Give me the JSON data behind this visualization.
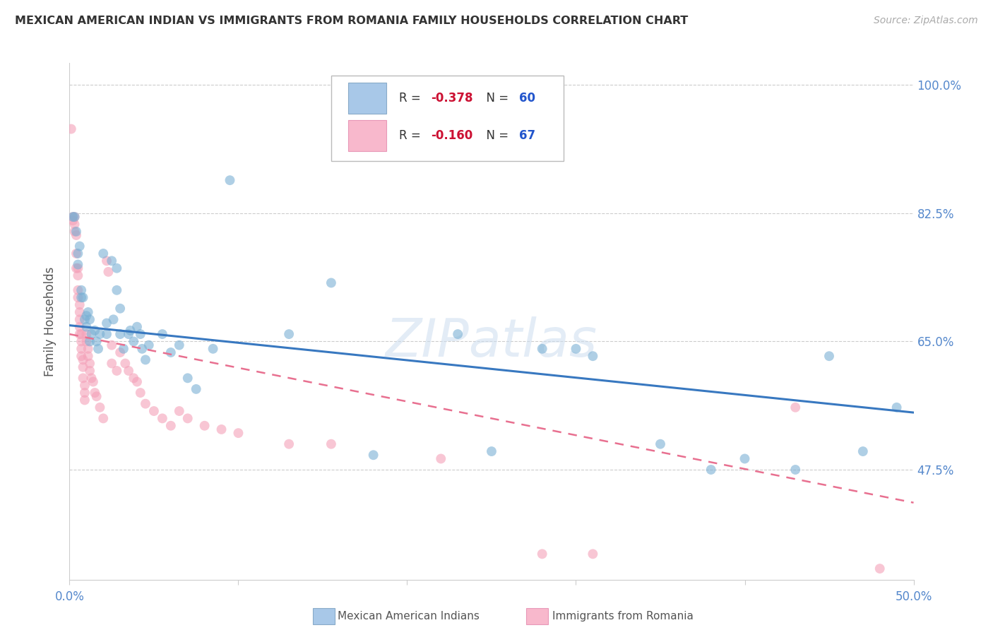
{
  "title": "MEXICAN AMERICAN INDIAN VS IMMIGRANTS FROM ROMANIA FAMILY HOUSEHOLDS CORRELATION CHART",
  "source": "Source: ZipAtlas.com",
  "ylabel": "Family Households",
  "xlim": [
    0.0,
    0.5
  ],
  "ylim": [
    0.325,
    1.03
  ],
  "yticks": [
    0.475,
    0.65,
    0.825,
    1.0
  ],
  "yticklabels": [
    "47.5%",
    "65.0%",
    "82.5%",
    "100.0%"
  ],
  "blue_scatter": [
    [
      0.002,
      0.82
    ],
    [
      0.003,
      0.82
    ],
    [
      0.004,
      0.8
    ],
    [
      0.005,
      0.755
    ],
    [
      0.005,
      0.77
    ],
    [
      0.006,
      0.78
    ],
    [
      0.007,
      0.71
    ],
    [
      0.007,
      0.72
    ],
    [
      0.008,
      0.71
    ],
    [
      0.009,
      0.68
    ],
    [
      0.01,
      0.67
    ],
    [
      0.01,
      0.685
    ],
    [
      0.011,
      0.69
    ],
    [
      0.012,
      0.68
    ],
    [
      0.012,
      0.65
    ],
    [
      0.013,
      0.66
    ],
    [
      0.015,
      0.665
    ],
    [
      0.016,
      0.65
    ],
    [
      0.017,
      0.64
    ],
    [
      0.018,
      0.66
    ],
    [
      0.02,
      0.77
    ],
    [
      0.022,
      0.675
    ],
    [
      0.022,
      0.66
    ],
    [
      0.025,
      0.76
    ],
    [
      0.026,
      0.68
    ],
    [
      0.028,
      0.72
    ],
    [
      0.028,
      0.75
    ],
    [
      0.03,
      0.695
    ],
    [
      0.03,
      0.66
    ],
    [
      0.032,
      0.64
    ],
    [
      0.035,
      0.66
    ],
    [
      0.036,
      0.665
    ],
    [
      0.038,
      0.65
    ],
    [
      0.04,
      0.67
    ],
    [
      0.042,
      0.66
    ],
    [
      0.043,
      0.64
    ],
    [
      0.045,
      0.625
    ],
    [
      0.047,
      0.645
    ],
    [
      0.055,
      0.66
    ],
    [
      0.06,
      0.635
    ],
    [
      0.065,
      0.645
    ],
    [
      0.07,
      0.6
    ],
    [
      0.075,
      0.585
    ],
    [
      0.085,
      0.64
    ],
    [
      0.095,
      0.87
    ],
    [
      0.13,
      0.66
    ],
    [
      0.155,
      0.73
    ],
    [
      0.18,
      0.495
    ],
    [
      0.23,
      0.66
    ],
    [
      0.25,
      0.5
    ],
    [
      0.28,
      0.64
    ],
    [
      0.3,
      0.64
    ],
    [
      0.31,
      0.63
    ],
    [
      0.35,
      0.51
    ],
    [
      0.38,
      0.475
    ],
    [
      0.4,
      0.49
    ],
    [
      0.43,
      0.475
    ],
    [
      0.45,
      0.63
    ],
    [
      0.47,
      0.5
    ],
    [
      0.49,
      0.56
    ]
  ],
  "pink_scatter": [
    [
      0.001,
      0.94
    ],
    [
      0.002,
      0.82
    ],
    [
      0.002,
      0.815
    ],
    [
      0.003,
      0.82
    ],
    [
      0.003,
      0.81
    ],
    [
      0.003,
      0.8
    ],
    [
      0.004,
      0.795
    ],
    [
      0.004,
      0.77
    ],
    [
      0.004,
      0.75
    ],
    [
      0.005,
      0.75
    ],
    [
      0.005,
      0.74
    ],
    [
      0.005,
      0.72
    ],
    [
      0.005,
      0.71
    ],
    [
      0.006,
      0.7
    ],
    [
      0.006,
      0.69
    ],
    [
      0.006,
      0.68
    ],
    [
      0.006,
      0.67
    ],
    [
      0.006,
      0.66
    ],
    [
      0.007,
      0.66
    ],
    [
      0.007,
      0.65
    ],
    [
      0.007,
      0.64
    ],
    [
      0.007,
      0.63
    ],
    [
      0.008,
      0.625
    ],
    [
      0.008,
      0.615
    ],
    [
      0.008,
      0.6
    ],
    [
      0.009,
      0.59
    ],
    [
      0.009,
      0.58
    ],
    [
      0.009,
      0.57
    ],
    [
      0.01,
      0.66
    ],
    [
      0.01,
      0.65
    ],
    [
      0.011,
      0.64
    ],
    [
      0.011,
      0.63
    ],
    [
      0.012,
      0.62
    ],
    [
      0.012,
      0.61
    ],
    [
      0.013,
      0.6
    ],
    [
      0.014,
      0.595
    ],
    [
      0.015,
      0.58
    ],
    [
      0.016,
      0.575
    ],
    [
      0.018,
      0.56
    ],
    [
      0.02,
      0.545
    ],
    [
      0.022,
      0.76
    ],
    [
      0.023,
      0.745
    ],
    [
      0.025,
      0.645
    ],
    [
      0.025,
      0.62
    ],
    [
      0.028,
      0.61
    ],
    [
      0.03,
      0.635
    ],
    [
      0.033,
      0.62
    ],
    [
      0.035,
      0.61
    ],
    [
      0.038,
      0.6
    ],
    [
      0.04,
      0.595
    ],
    [
      0.042,
      0.58
    ],
    [
      0.045,
      0.565
    ],
    [
      0.05,
      0.555
    ],
    [
      0.055,
      0.545
    ],
    [
      0.06,
      0.535
    ],
    [
      0.065,
      0.555
    ],
    [
      0.07,
      0.545
    ],
    [
      0.08,
      0.535
    ],
    [
      0.09,
      0.53
    ],
    [
      0.1,
      0.525
    ],
    [
      0.13,
      0.51
    ],
    [
      0.155,
      0.51
    ],
    [
      0.22,
      0.49
    ],
    [
      0.28,
      0.36
    ],
    [
      0.31,
      0.36
    ],
    [
      0.43,
      0.56
    ],
    [
      0.48,
      0.34
    ]
  ],
  "blue_line": {
    "x0": 0.0,
    "y0": 0.672,
    "x1": 0.5,
    "y1": 0.553
  },
  "pink_line": {
    "x0": 0.0,
    "y0": 0.66,
    "x1": 0.5,
    "y1": 0.43
  },
  "scatter_size": 100,
  "blue_color": "#7ab0d4",
  "pink_color": "#f4a0b8",
  "blue_alpha": 0.6,
  "pink_alpha": 0.6,
  "watermark": "ZIPatlas",
  "legend_r_vals": [
    "-0.378",
    "-0.160"
  ],
  "legend_n_vals": [
    "60",
    "67"
  ],
  "legend_colors": [
    "#a8c8e8",
    "#f8b8cc"
  ],
  "footer_labels": [
    "Mexican American Indians",
    "Immigrants from Romania"
  ],
  "footer_patch_colors": [
    "#a8c8e8",
    "#f8b8cc"
  ]
}
